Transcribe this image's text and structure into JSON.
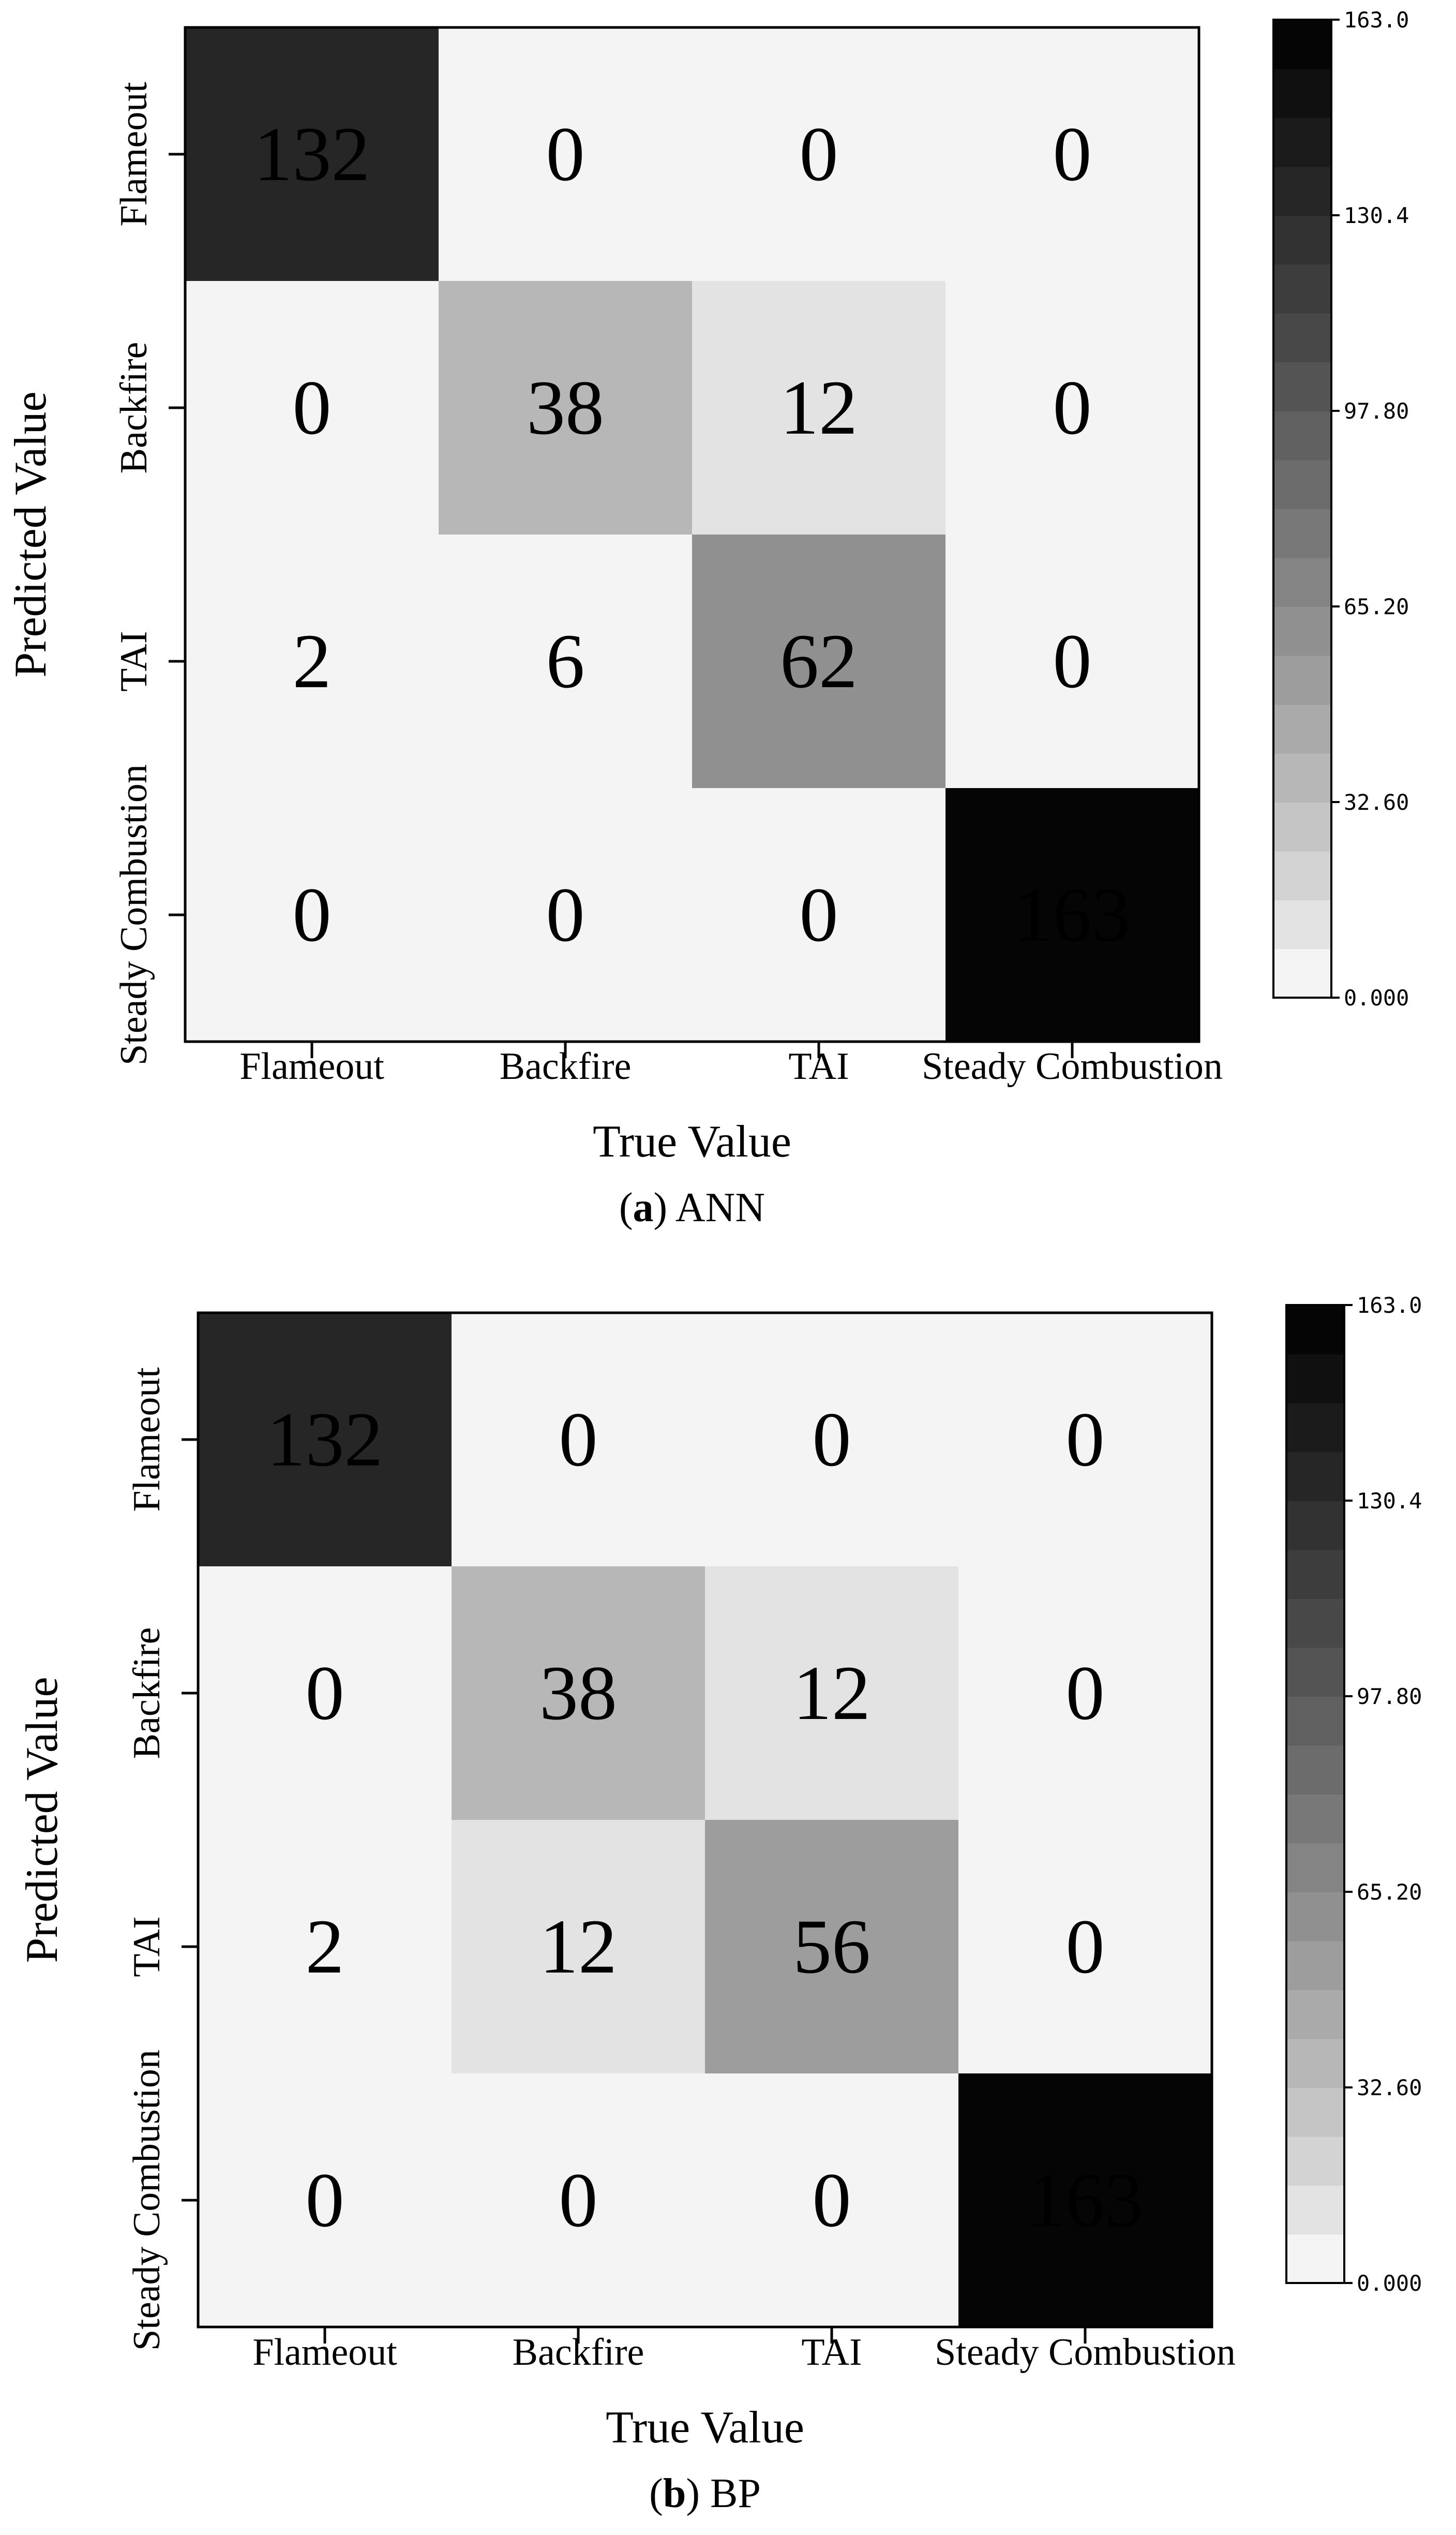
{
  "chart_data": [
    {
      "type": "heatmap",
      "subtitle_letter": "a",
      "subtitle_text": " ANN",
      "xlabel": "True Value",
      "ylabel": "Predicted Value",
      "x_categories": [
        "Flameout",
        "Backfire",
        "TAI",
        "Steady Combustion"
      ],
      "y_categories": [
        "Flameout",
        "Backfire",
        "TAI",
        "Steady Combustion"
      ],
      "matrix": [
        [
          132,
          0,
          0,
          0
        ],
        [
          0,
          38,
          12,
          0
        ],
        [
          2,
          6,
          62,
          0
        ],
        [
          0,
          0,
          0,
          163
        ]
      ],
      "colorbar": {
        "min": 0,
        "max": 163,
        "levels": 20,
        "tick_labels": [
          "163.0",
          "130.4",
          "97.80",
          "65.20",
          "32.60",
          "0.000"
        ]
      },
      "colormap": "Greys"
    },
    {
      "type": "heatmap",
      "subtitle_letter": "b",
      "subtitle_text": " BP",
      "xlabel": "True Value",
      "ylabel": "Predicted Value",
      "x_categories": [
        "Flameout",
        "Backfire",
        "TAI",
        "Steady Combustion"
      ],
      "y_categories": [
        "Flameout",
        "Backfire",
        "TAI",
        "Steady Combustion"
      ],
      "matrix": [
        [
          132,
          0,
          0,
          0
        ],
        [
          0,
          38,
          12,
          0
        ],
        [
          2,
          12,
          56,
          0
        ],
        [
          0,
          0,
          0,
          163
        ]
      ],
      "colorbar": {
        "min": 0,
        "max": 163,
        "levels": 20,
        "tick_labels": [
          "163.0",
          "130.4",
          "97.80",
          "65.20",
          "32.60",
          "0.000"
        ]
      },
      "colormap": "Greys"
    }
  ]
}
